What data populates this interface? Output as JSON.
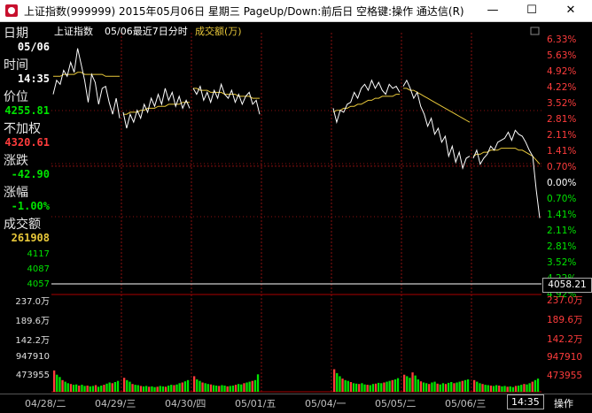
{
  "window": {
    "title": "上证指数(999999) 2015年05月06日 星期三 PageUp/Down:前后日 空格键:操作 通达信(R)",
    "buttons": {
      "minimize": "—",
      "maximize": "☐",
      "close": "✕"
    }
  },
  "sidebar": {
    "date_label": "日期",
    "date_value": "05/06",
    "time_label": "时间",
    "time_value": "14:35",
    "price_label": "价位",
    "price_value": "4255.81",
    "unadj_label": "不加权",
    "unadj_value": "4320.61",
    "change_label": "涨跌",
    "change_value": "-42.90",
    "pct_label": "涨幅",
    "pct_value": "-1.00%",
    "volume_label": "成交额",
    "volume_value": "261908",
    "price_scale": [
      "4117",
      "4087",
      "4057"
    ],
    "volume_scale": [
      "237.0万",
      "189.6万",
      "142.2万",
      "947910",
      "473955"
    ]
  },
  "chart_header": {
    "name": "上证指数",
    "subtitle": "05/06最近7日分时",
    "indicator": "成交额(万)"
  },
  "right_scale": {
    "percent": [
      "6.33%",
      "5.63%",
      "4.92%",
      "4.22%",
      "3.52%",
      "2.81%",
      "2.11%",
      "1.41%",
      "0.70%",
      "0.00%",
      "0.70%",
      "1.41%",
      "2.11%",
      "2.81%",
      "3.52%",
      "4.22%",
      "4.92%",
      "5.63%"
    ],
    "cursor_value": "4058.21",
    "volume": [
      "237.0万",
      "189.6万",
      "142.2万",
      "947910",
      "473955"
    ]
  },
  "bottom": {
    "dates": [
      "04/28/二",
      "04/29/三",
      "04/30/四",
      "05/01/五",
      "05/04/一",
      "05/05/二",
      "05/06/三"
    ],
    "cursor_time": "14:35",
    "operate": "操作"
  },
  "colors": {
    "up": "#ff3c3c",
    "down": "#00e400",
    "price_line": "#ffffff",
    "avg_line": "#e8c83a",
    "grid": "#8b1010"
  },
  "chart_data": {
    "type": "line",
    "series": [],
    "y_right_percent_range": [
      -5.63,
      6.33
    ],
    "days": [
      "04/28/二",
      "04/29/三",
      "04/30/四",
      "05/01/五",
      "05/04/一",
      "05/05/二",
      "05/06/三"
    ],
    "price_percent": [
      [
        3.6,
        4.3,
        4.1,
        4.8,
        4.5,
        5.2,
        4.7,
        5.9,
        5.1,
        4.3,
        3.2,
        4.6,
        4.2,
        3.1,
        3.9,
        4.0,
        3.2,
        2.6,
        3.4,
        2.4
      ],
      [
        2.7,
        1.9,
        2.6,
        2.2,
        2.8,
        2.4,
        3.1,
        2.7,
        3.4,
        3.0,
        3.6,
        3.1,
        3.9,
        3.3,
        3.7,
        3.0,
        3.5,
        2.9,
        3.3,
        2.9
      ],
      [
        3.9,
        3.6,
        4.0,
        3.3,
        3.7,
        3.2,
        3.8,
        3.4,
        4.1,
        3.6,
        3.4,
        3.8,
        3.2,
        3.6,
        3.1,
        3.5,
        3.7,
        3.1,
        3.3,
        2.6
      ],
      [],
      [
        2.9,
        2.2,
        2.8,
        2.7,
        3.1,
        3.2,
        3.7,
        3.4,
        3.9,
        4.1,
        3.8,
        4.3,
        3.9,
        4.2,
        3.8,
        3.6,
        4.1,
        3.9,
        4.0,
        3.7
      ],
      [
        4.0,
        4.3,
        3.9,
        3.4,
        3.7,
        3.0,
        2.6,
        2.0,
        2.4,
        1.6,
        1.9,
        1.2,
        1.5,
        0.5,
        1.0,
        0.2,
        0.7,
        -0.1,
        0.4,
        0.5
      ],
      [
        0.4,
        0.8,
        0.1,
        0.4,
        0.6,
        1.0,
        0.8,
        1.2,
        1.3,
        1.4,
        1.7,
        1.3,
        1.8,
        1.6,
        1.5,
        1.2,
        0.8,
        0.5,
        -1.2,
        -2.6
      ]
    ],
    "avg_percent": [
      [
        4.5,
        4.5,
        4.5,
        4.6,
        4.6,
        4.6,
        4.6,
        4.7,
        4.7,
        4.6,
        4.6,
        4.6,
        4.6,
        4.6,
        4.6,
        4.5,
        4.5,
        4.5,
        4.5,
        4.5
      ],
      [
        2.6,
        2.6,
        2.7,
        2.7,
        2.7,
        2.8,
        2.8,
        2.9,
        2.9,
        2.9,
        3.0,
        3.0,
        3.0,
        3.1,
        3.1,
        3.1,
        3.1,
        3.2,
        3.2,
        3.2
      ],
      [
        3.9,
        3.9,
        3.8,
        3.8,
        3.8,
        3.7,
        3.7,
        3.7,
        3.7,
        3.6,
        3.6,
        3.6,
        3.6,
        3.5,
        3.5,
        3.5,
        3.5,
        3.4,
        3.4,
        3.4
      ],
      [],
      [
        2.7,
        2.8,
        2.8,
        2.9,
        2.9,
        3.0,
        3.0,
        3.1,
        3.1,
        3.2,
        3.3,
        3.3,
        3.4,
        3.4,
        3.5,
        3.5,
        3.5,
        3.5,
        3.6,
        3.6
      ],
      [
        3.9,
        3.9,
        3.8,
        3.8,
        3.7,
        3.6,
        3.5,
        3.4,
        3.3,
        3.2,
        3.1,
        3.0,
        2.9,
        2.8,
        2.7,
        2.6,
        2.5,
        2.4,
        2.3,
        2.2
      ],
      [
        0.5,
        0.6,
        0.6,
        0.7,
        0.7,
        0.8,
        0.8,
        0.8,
        0.9,
        0.9,
        0.9,
        0.9,
        0.9,
        0.8,
        0.8,
        0.7,
        0.6,
        0.5,
        0.3,
        0.1
      ]
    ],
    "volume_scale_max_wan": 237.0,
    "volume_wan": [
      [
        55,
        44,
        38,
        30,
        26,
        22,
        20,
        18,
        19,
        16,
        18,
        15,
        16,
        14,
        15,
        17,
        13,
        16,
        18,
        21,
        24,
        22,
        25,
        28
      ],
      [
        36,
        30,
        26,
        20,
        18,
        17,
        15,
        14,
        15,
        13,
        14,
        12,
        13,
        15,
        14,
        13,
        16,
        18,
        17,
        19,
        22,
        24,
        27,
        30
      ],
      [
        40,
        32,
        28,
        24,
        22,
        20,
        19,
        17,
        16,
        15,
        17,
        16,
        14,
        15,
        16,
        18,
        20,
        19,
        22,
        24,
        26,
        28,
        30,
        45
      ],
      [],
      [
        58,
        48,
        40,
        34,
        30,
        28,
        25,
        22,
        21,
        20,
        22,
        19,
        18,
        17,
        20,
        21,
        23,
        22,
        24,
        26,
        28,
        30,
        32,
        35
      ],
      [
        44,
        40,
        36,
        50,
        42,
        32,
        27,
        24,
        22,
        20,
        24,
        26,
        21,
        19,
        22,
        20,
        23,
        25,
        22,
        24,
        26,
        28,
        30,
        32
      ],
      [
        30,
        26,
        22,
        20,
        18,
        17,
        16,
        15,
        17,
        16,
        14,
        15,
        13,
        14,
        12,
        15,
        16,
        18,
        20,
        19,
        22,
        26,
        30,
        34
      ]
    ]
  }
}
